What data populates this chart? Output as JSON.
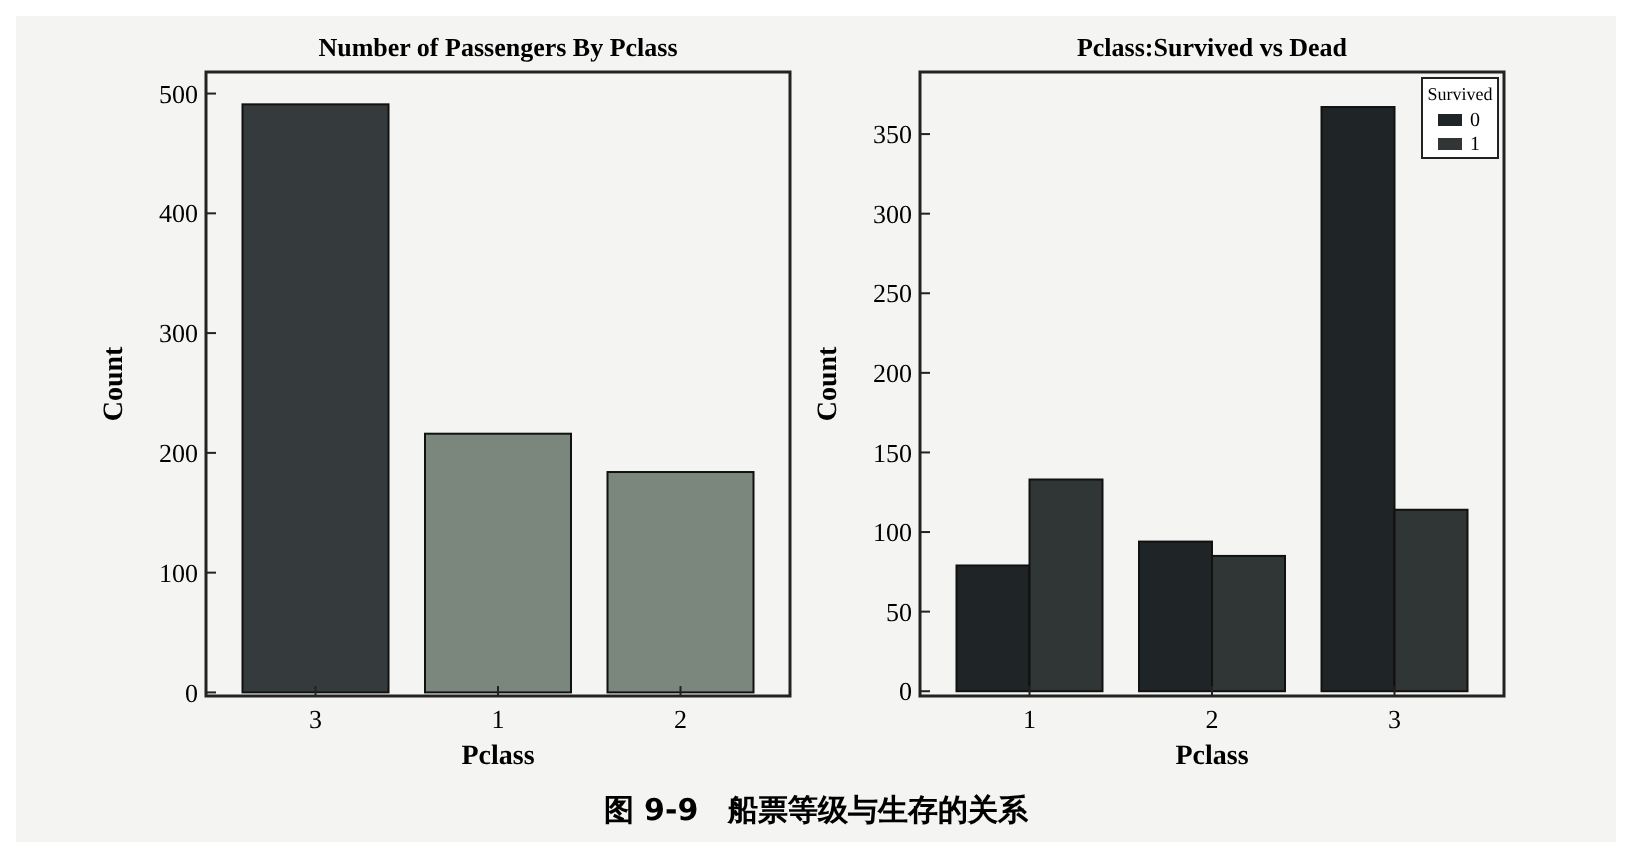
{
  "chart_data": [
    {
      "type": "bar",
      "title": "Number of Passengers By Pclass",
      "xlabel": "Pclass",
      "ylabel": "Count",
      "categories": [
        "3",
        "1",
        "2"
      ],
      "values": [
        491,
        216,
        184
      ],
      "colors": [
        "#353b3c",
        "#7b867c",
        "#7b867c"
      ],
      "ylim": [
        -3,
        518
      ],
      "yticks": [
        0,
        100,
        200,
        300,
        400,
        500
      ],
      "grid": false,
      "legend": false
    },
    {
      "type": "bar",
      "title": "Pclass:Survived vs Dead",
      "xlabel": "Pclass",
      "ylabel": "Count",
      "categories": [
        "1",
        "2",
        "3"
      ],
      "legend_title": "Survived",
      "legend": "top right",
      "grid": false,
      "ylim": [
        -3,
        389
      ],
      "yticks": [
        0,
        50,
        100,
        150,
        200,
        250,
        300,
        350
      ],
      "series": [
        {
          "name": "0",
          "color": "#1f2427",
          "values": [
            79,
            94,
            367
          ]
        },
        {
          "name": "1",
          "color": "#303535",
          "values": [
            133,
            85,
            114
          ]
        }
      ],
      "annotations": [
        "图 9-9　船票等级与生存的关系"
      ]
    }
  ]
}
